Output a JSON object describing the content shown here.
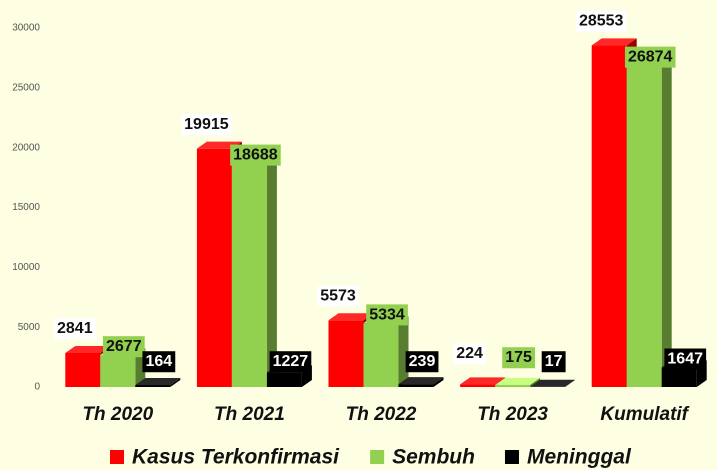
{
  "chart_data": {
    "type": "bar",
    "categories": [
      "Th 2020",
      "Th 2021",
      "Th 2022",
      "Th 2023",
      "Kumulatif"
    ],
    "series": [
      {
        "name": "Kasus Terkonfirmasi",
        "color": "#ff0000",
        "values": [
          2841,
          19915,
          5573,
          224,
          28553
        ]
      },
      {
        "name": "Sembuh",
        "color": "#92d050",
        "values": [
          2677,
          18688,
          5334,
          175,
          26874
        ]
      },
      {
        "name": "Meninggal",
        "color": "#000000",
        "values": [
          164,
          1227,
          239,
          17,
          1647
        ]
      }
    ],
    "ylim": [
      0,
      30000
    ],
    "yticks": [
      0,
      5000,
      10000,
      15000,
      20000,
      25000,
      30000
    ],
    "grid": false,
    "legend": "bottom"
  }
}
